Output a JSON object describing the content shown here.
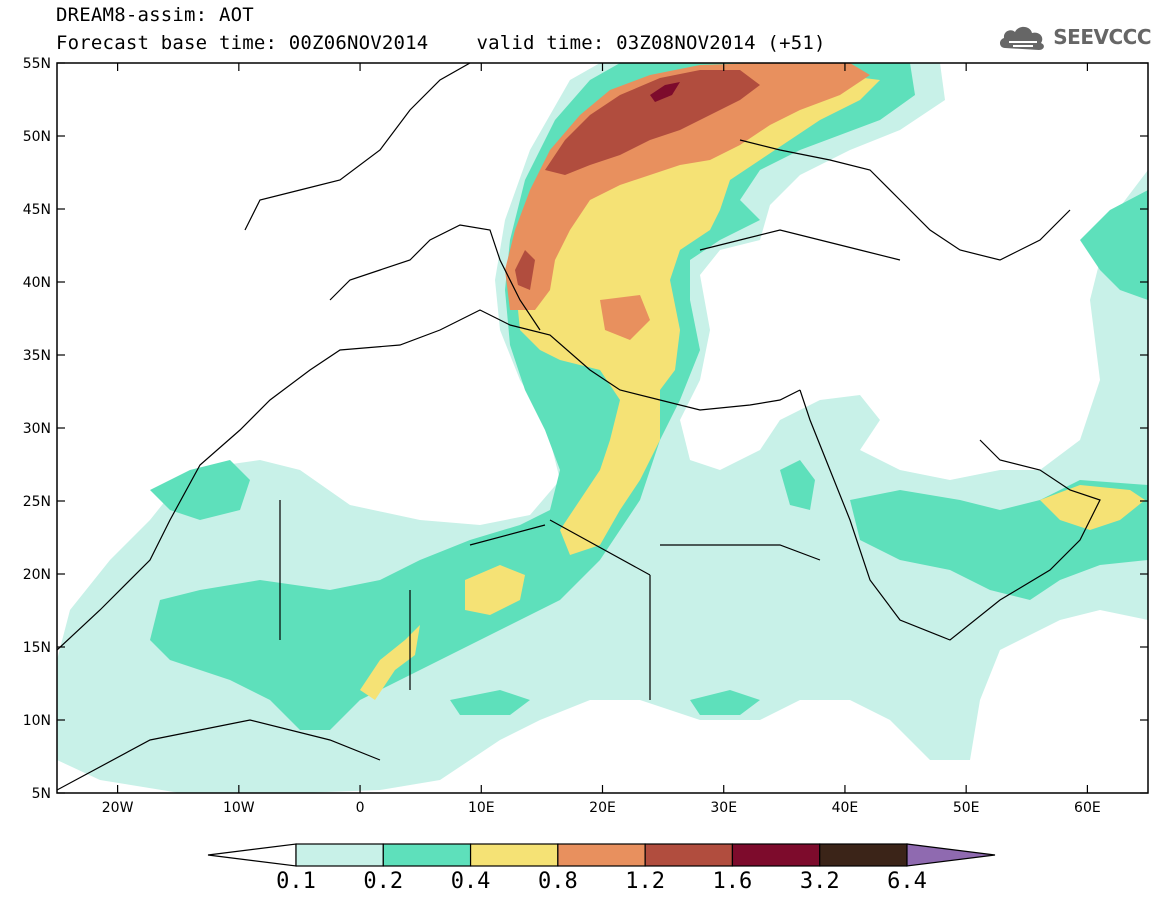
{
  "header": {
    "line1": "DREAM8-assim: AOT",
    "base_time_label": "Forecast base time: 00Z06NOV2014",
    "valid_time_label": "valid time: 03Z08NOV2014 (+51)"
  },
  "logo": {
    "text": "SEEVCCC",
    "icon": "cloud-icon"
  },
  "map": {
    "lon_range": [
      -25,
      65
    ],
    "lat_range": [
      5,
      55
    ],
    "lat_ticks": [
      "55N",
      "50N",
      "45N",
      "40N",
      "35N",
      "30N",
      "25N",
      "20N",
      "15N",
      "10N",
      "5N"
    ],
    "lon_ticks": [
      "20W",
      "10W",
      "0",
      "10E",
      "20E",
      "30E",
      "40E",
      "50E",
      "60E"
    ]
  },
  "colorbar": {
    "labels": [
      "0.1",
      "0.2",
      "0.4",
      "0.8",
      "1.2",
      "1.6",
      "3.2",
      "6.4"
    ],
    "colors": [
      "#ffffff",
      "#c8f1e8",
      "#5ee0bb",
      "#f5e275",
      "#e8905e",
      "#b14d3e",
      "#7d0b2c",
      "#3b2418",
      "#8f6ab0"
    ]
  }
}
